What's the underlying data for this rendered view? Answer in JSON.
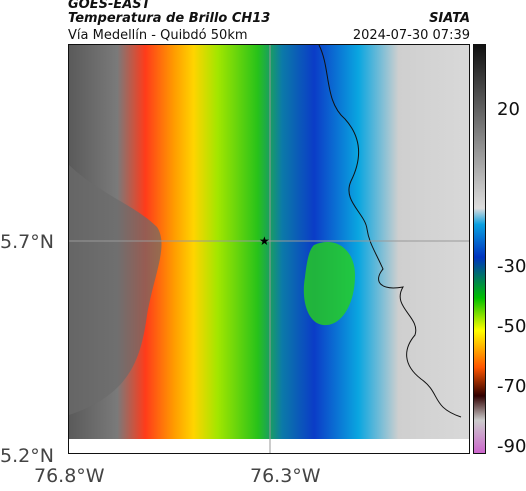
{
  "header": {
    "satellite": "GOES-EAST",
    "product": "Temperatura de Brillo CH13",
    "region": "Vía Medellín - Quibdó 50km",
    "org": "SIATA",
    "datetime": "2024-07-30 07:39"
  },
  "axes": {
    "lat_labels": [
      "5.7°N",
      "5.2°N"
    ],
    "lon_labels": [
      "76.8°W",
      "76.3°W"
    ]
  },
  "colorbar": {
    "labels": [
      "20",
      "-30",
      "-50",
      "-70",
      "-90"
    ],
    "stops": [
      "#111111",
      "#555555",
      "#9a9a9a",
      "#dcdcdc",
      "#0aa0e0",
      "#0040c0",
      "#00c000",
      "#ffff00",
      "#ff8000",
      "#e00000",
      "#400000",
      "#cc66cc"
    ]
  },
  "map": {
    "marker": "star-icon"
  }
}
